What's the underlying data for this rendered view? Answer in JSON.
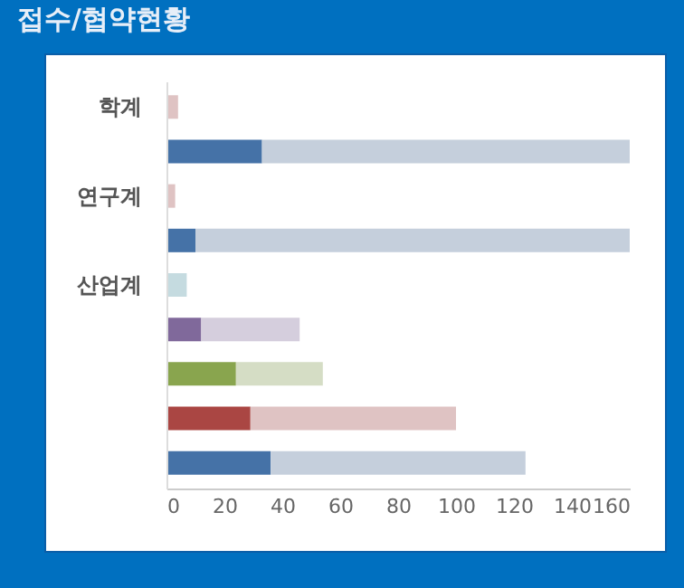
{
  "chart_data": {
    "type": "bar",
    "title": "접수/협약현황",
    "orientation": "horizontal",
    "stacked": true,
    "categories": [
      "학계",
      null,
      "연구계",
      null,
      "산업계",
      null,
      null,
      null,
      null
    ],
    "series": [
      {
        "colors": [
          null,
          "#4572a7",
          null,
          "#4572a7",
          null,
          "#80699b",
          "#89a54e",
          "#aa4643",
          "#4572a7"
        ],
        "values": [
          null,
          33,
          null,
          10,
          null,
          12,
          24,
          29,
          36
        ]
      },
      {
        "colors": [
          "#dfc3c3",
          "#c5cfdc",
          "#dfc3c3",
          "#c5cfdc",
          "#c5dbe0",
          "#d5cedd",
          "#d5ddc5",
          "#dfc3c3",
          "#c5cfdc"
        ],
        "values": [
          4,
          127,
          3,
          150,
          7,
          34,
          30,
          71,
          88
        ]
      }
    ],
    "xlim": [
      0,
      160
    ],
    "xticks": [
      0,
      20,
      40,
      60,
      80,
      100,
      120,
      140,
      160
    ],
    "grid": false
  }
}
